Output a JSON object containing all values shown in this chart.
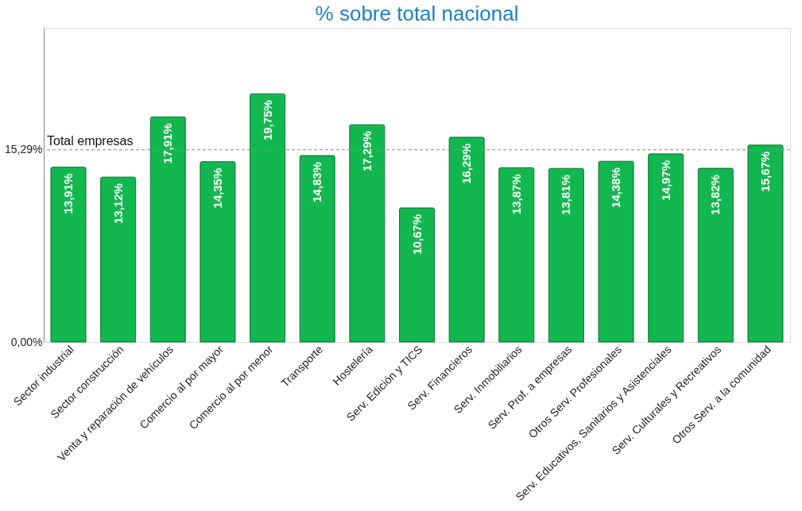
{
  "chart_data": {
    "type": "bar",
    "title": "% sobre total nacional",
    "categories": [
      "Sector industrial",
      "Sector construcción",
      "Venta y reparación de vehículos",
      "Comercio al por mayor",
      "Comercio al por menor",
      "Transporte",
      "Hostelería",
      "Serv. Edición y TICS",
      "Serv. Financieros",
      "Serv. Inmobiliarios",
      "Serv. Prof. a empresas",
      "Otros Serv. Profesionales",
      "Serv. Educativos, Sanitarios y Asistenciales",
      "Serv. Culturales y Recreativos",
      "Otros Serv. a la comunidad"
    ],
    "values": [
      13.91,
      13.12,
      17.91,
      14.35,
      19.75,
      14.83,
      17.29,
      10.67,
      16.29,
      13.87,
      13.81,
      14.38,
      14.97,
      13.82,
      15.67
    ],
    "value_labels": [
      "13,91%",
      "13,12%",
      "17,91%",
      "14,35%",
      "19,75%",
      "14,83%",
      "17,29%",
      "10,67%",
      "16,29%",
      "13,87%",
      "13,81%",
      "14,38%",
      "14,97%",
      "13,82%",
      "15,67%"
    ],
    "color": "#12b84f",
    "ylim": [
      0,
      25
    ],
    "yticks": [
      {
        "value": 0,
        "label": "0,00%"
      },
      {
        "value": 15.29,
        "label": "15,29%"
      }
    ],
    "ref_lines": [
      {
        "axis": "y",
        "value": 15.29,
        "label": "Total  empresas",
        "color": "#888888",
        "line_style": "dashed"
      }
    ]
  }
}
